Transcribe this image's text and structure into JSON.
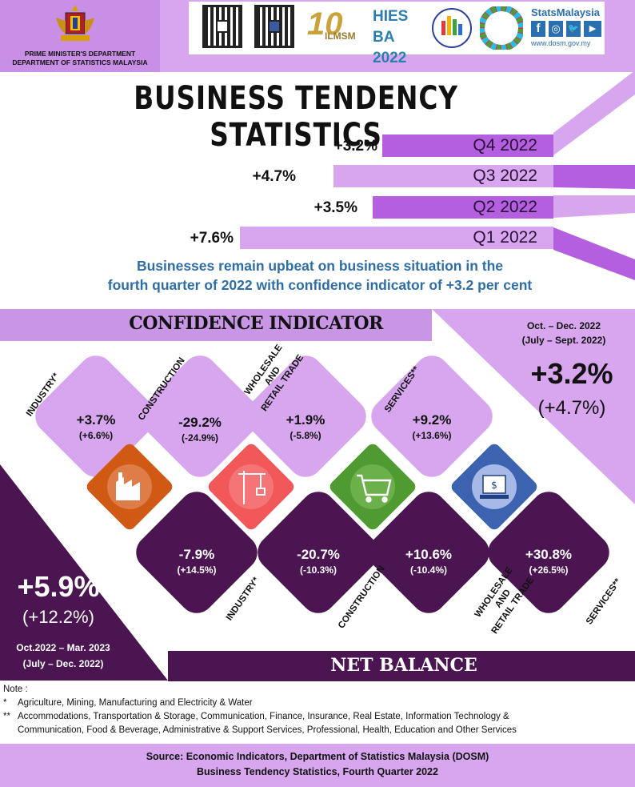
{
  "header": {
    "agency_line1": "PRIME MINISTER'S DEPARTMENT",
    "agency_line2": "DEPARTMENT OF STATISTICS MALAYSIA",
    "logo_ilmsm": "ILMSM",
    "logo_hiesba": "HIES BA 2022",
    "social_brand": "StatsMalaysia",
    "website": "www.dosm.gov.my"
  },
  "title": "BUSINESS TENDENCY STATISTICS",
  "quarters": [
    {
      "label": "Q4 2022",
      "value_label": "+3.2%",
      "value": 3.2
    },
    {
      "label": "Q3 2022",
      "value_label": "+4.7%",
      "value": 4.7
    },
    {
      "label": "Q2 2022",
      "value_label": "+3.5%",
      "value": 3.5
    },
    {
      "label": "Q1 2022",
      "value_label": "+7.6%",
      "value": 7.6
    }
  ],
  "subtitle_line1": "Businesses remain upbeat on business situation in the",
  "subtitle_line2": "fourth quarter of 2022 with confidence indicator of +3.2 per cent",
  "confidence": {
    "title": "CONFIDENCE INDICATOR",
    "period_current": "Oct. – Dec. 2022",
    "period_previous": "(July – Sept. 2022)",
    "overall": "+3.2%",
    "overall_previous": "(+4.7%)",
    "sectors": [
      {
        "name": "INDUSTRY*",
        "value": "+3.7%",
        "previous": "(+6.6%)"
      },
      {
        "name": "CONSTRUCTION",
        "value": "-29.2%",
        "previous": "(-24.9%)"
      },
      {
        "name_lines": [
          "WHOLESALE",
          "AND",
          "RETAIL TRADE"
        ],
        "value": "+1.9%",
        "previous": "(-5.8%)"
      },
      {
        "name": "SERVICES**",
        "value": "+9.2%",
        "previous": "(+13.6%)"
      }
    ]
  },
  "net_balance": {
    "title": "NET BALANCE",
    "period_current": "Oct.2022 – Mar. 2023",
    "period_previous": "(July – Dec. 2022)",
    "overall": "+5.9%",
    "overall_previous": "(+12.2%)",
    "sectors": [
      {
        "name": "INDUSTRY*",
        "value": "-7.9%",
        "previous": "(+14.5%)"
      },
      {
        "name": "CONSTRUCTION",
        "value": "-20.7%",
        "previous": "(-10.3%)"
      },
      {
        "name_lines": [
          "WHOLESALE",
          "AND",
          "RETAIL TRADE"
        ],
        "value": "+10.6%",
        "previous": "(-10.4%)"
      },
      {
        "name": "SERVICES**",
        "value": "+30.8%",
        "previous": "(+26.5%)"
      }
    ]
  },
  "colors": {
    "light_purple": "#d7a6ee",
    "mid_purple": "#b35fe0",
    "dark_purple": "#4a1550",
    "industry_orange": "#d05a14",
    "construction_red": "#f2575a",
    "trade_green": "#4f9a31",
    "services_blue": "#3d63b0"
  },
  "notes": {
    "heading": "Note :",
    "note1_mark": "*",
    "note1": "Agriculture, Mining, Manufacturing and  Electricity & Water",
    "note2_mark": "**",
    "note2_line1": "Accommodations, Transportation & Storage, Communication, Finance, Insurance, Real Estate, Information Technology &",
    "note2_line2": "Communication, Food & Beverage, Administrative & Support Services, Professional, Health, Education and Other Services"
  },
  "source": {
    "line1": "Source: Economic Indicators, Department of Statistics Malaysia (DOSM)",
    "line2": "Business Tendency Statistics, Fourth Quarter 2022"
  },
  "icons": [
    "coat-of-arms-icon",
    "qr-code-icon",
    "factory-icon",
    "crane-icon",
    "shopping-cart-icon",
    "bank-service-icon",
    "facebook-icon",
    "instagram-icon",
    "twitter-icon",
    "youtube-icon"
  ]
}
